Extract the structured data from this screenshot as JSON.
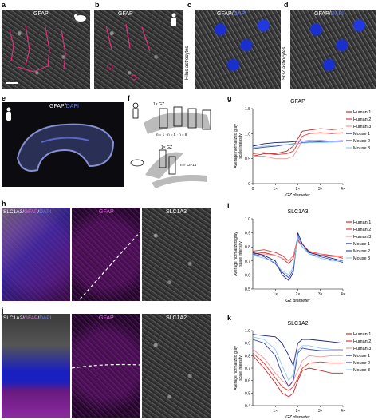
{
  "panels": {
    "a": {
      "letter": "a",
      "label": "GFAP"
    },
    "b": {
      "letter": "b",
      "label": "GFAP"
    },
    "c": {
      "letter": "c",
      "label_gfap": "GFAP",
      "label_sep": "/",
      "label_dapi": "DAPI",
      "side_label": "Hilus astrocytes"
    },
    "d": {
      "letter": "d",
      "label_gfap": "GFAP",
      "label_sep": "/",
      "label_dapi": "DAPI",
      "side_label": "SGZ astrocytes"
    },
    "e": {
      "letter": "e",
      "label_gfap": "GFAP",
      "label_sep": "/",
      "label_dapi": "DAPI"
    },
    "f": {
      "letter": "f",
      "gz_top": "1× GZ",
      "n_human": "n = 1 · n = 5 · n = 6",
      "gz_bottom": "1× GZ",
      "n_mouse": "n = 12–14"
    },
    "g": {
      "letter": "g"
    },
    "h": {
      "letter": "h",
      "label_slc": "SLC1A3",
      "label_sep1": "/",
      "label_gfap": "GFAP",
      "label_sep2": "/",
      "label_dapi": "DAPI",
      "mid_label": "GFAP",
      "right_label": "SLC1A3"
    },
    "i": {
      "letter": "i"
    },
    "j": {
      "letter": "j",
      "label_slc": "SLC1A2",
      "label_sep1": "/",
      "label_gfap": "GFAP",
      "label_sep2": "/",
      "label_dapi": "DAPI",
      "mid_label": "GFAP",
      "right_label": "SLC1A2"
    },
    "k": {
      "letter": "k"
    }
  },
  "colors": {
    "human1": "#c62828",
    "human2": "#e53935",
    "human3": "#ef9a9a",
    "mouse1": "#1a237e",
    "mouse2": "#3949ab",
    "mouse3": "#90caf9",
    "gfap_magenta": "#c040c0",
    "dapi_blue": "#2233dd"
  },
  "chart_data": [
    {
      "type": "line",
      "title": "GFAP",
      "xlabel": "GZ diameter",
      "ylabel": "Average normalized gray scale intensity",
      "xticks": [
        "0",
        "1×",
        "2×",
        "3×",
        "4×"
      ],
      "yticks": [
        "0",
        "0.5",
        "1.0",
        "1.5"
      ],
      "xlim": [
        0,
        4
      ],
      "ylim": [
        0,
        1.5
      ],
      "legend_position": "right",
      "x": [
        0,
        0.5,
        1,
        1.5,
        1.8,
        2,
        2.2,
        2.5,
        3,
        3.5,
        4
      ],
      "series": [
        {
          "name": "Human 1",
          "values": [
            0.55,
            0.6,
            0.6,
            0.65,
            0.75,
            0.9,
            1.05,
            1.07,
            1.1,
            1.08,
            1.1
          ]
        },
        {
          "name": "Human 2",
          "values": [
            0.6,
            0.62,
            0.58,
            0.6,
            0.65,
            0.8,
            0.95,
            1.0,
            1.02,
            1.0,
            1.02
          ]
        },
        {
          "name": "Human 3",
          "values": [
            0.55,
            0.55,
            0.5,
            0.5,
            0.55,
            0.7,
            0.85,
            0.87,
            0.86,
            0.85,
            0.85
          ]
        },
        {
          "name": "Mouse 1",
          "values": [
            0.75,
            0.8,
            0.82,
            0.83,
            0.84,
            0.85,
            0.85,
            0.85,
            0.86,
            0.85,
            0.85
          ]
        },
        {
          "name": "Mouse 2",
          "values": [
            0.7,
            0.73,
            0.75,
            0.78,
            0.8,
            0.8,
            0.82,
            0.83,
            0.84,
            0.85,
            0.86
          ]
        },
        {
          "name": "Mouse 3",
          "values": [
            0.72,
            0.75,
            0.77,
            0.78,
            0.79,
            0.8,
            0.81,
            0.82,
            0.82,
            0.83,
            0.84
          ]
        }
      ]
    },
    {
      "type": "line",
      "title": "SLC1A3",
      "xlabel": "GZ diameter",
      "ylabel": "Average normalized gray scale intensity",
      "xticks": [
        "1×",
        "2×",
        "3×",
        "4×"
      ],
      "yticks": [
        "0.5",
        "0.6",
        "0.7",
        "0.8",
        "0.9",
        "1.0"
      ],
      "xlim": [
        0,
        4
      ],
      "ylim": [
        0.5,
        1.0
      ],
      "legend_position": "right",
      "x": [
        0,
        0.5,
        1,
        1.3,
        1.6,
        1.8,
        2,
        2.2,
        2.5,
        3,
        3.5,
        4
      ],
      "series": [
        {
          "name": "Human 1",
          "values": [
            0.75,
            0.76,
            0.74,
            0.72,
            0.68,
            0.72,
            0.85,
            0.8,
            0.76,
            0.74,
            0.74,
            0.72
          ]
        },
        {
          "name": "Human 2",
          "values": [
            0.77,
            0.78,
            0.76,
            0.74,
            0.7,
            0.74,
            0.86,
            0.82,
            0.77,
            0.75,
            0.74,
            0.73
          ]
        },
        {
          "name": "Human 3",
          "values": [
            0.74,
            0.75,
            0.74,
            0.72,
            0.7,
            0.74,
            0.84,
            0.8,
            0.76,
            0.75,
            0.73,
            0.73
          ]
        },
        {
          "name": "Mouse 1",
          "values": [
            0.76,
            0.74,
            0.7,
            0.6,
            0.56,
            0.62,
            0.9,
            0.82,
            0.76,
            0.74,
            0.72,
            0.7
          ]
        },
        {
          "name": "Mouse 2",
          "values": [
            0.75,
            0.73,
            0.68,
            0.62,
            0.58,
            0.64,
            0.88,
            0.8,
            0.75,
            0.73,
            0.71,
            0.69
          ]
        },
        {
          "name": "Mouse 3",
          "values": [
            0.74,
            0.72,
            0.69,
            0.63,
            0.6,
            0.66,
            0.87,
            0.8,
            0.75,
            0.72,
            0.7,
            0.7
          ]
        }
      ]
    },
    {
      "type": "line",
      "title": "SLC1A2",
      "xlabel": "GZ diameter",
      "ylabel": "Average normalized gray scale intensity",
      "xticks": [
        "1×",
        "2×",
        "3×",
        "4×"
      ],
      "yticks": [
        "0.4",
        "0.5",
        "0.6",
        "0.7",
        "0.8",
        "0.9",
        "1.0"
      ],
      "xlim": [
        0,
        4
      ],
      "ylim": [
        0.4,
        1.0
      ],
      "legend_position": "right",
      "x": [
        0,
        0.5,
        1,
        1.3,
        1.6,
        1.8,
        2,
        2.2,
        2.5,
        3,
        3.5,
        4
      ],
      "series": [
        {
          "name": "Human 1",
          "values": [
            0.8,
            0.7,
            0.58,
            0.5,
            0.47,
            0.5,
            0.6,
            0.68,
            0.7,
            0.68,
            0.66,
            0.66
          ]
        },
        {
          "name": "Human 2",
          "values": [
            0.82,
            0.74,
            0.62,
            0.55,
            0.52,
            0.55,
            0.62,
            0.7,
            0.74,
            0.75,
            0.74,
            0.74
          ]
        },
        {
          "name": "Human 3",
          "values": [
            0.85,
            0.78,
            0.66,
            0.6,
            0.56,
            0.6,
            0.68,
            0.76,
            0.8,
            0.79,
            0.8,
            0.8
          ]
        },
        {
          "name": "Mouse 1",
          "values": [
            0.97,
            0.96,
            0.95,
            0.9,
            0.8,
            0.72,
            0.9,
            0.93,
            0.93,
            0.92,
            0.91,
            0.9
          ]
        },
        {
          "name": "Mouse 2",
          "values": [
            0.93,
            0.9,
            0.8,
            0.65,
            0.55,
            0.6,
            0.82,
            0.86,
            0.85,
            0.84,
            0.84,
            0.84
          ]
        },
        {
          "name": "Mouse 3",
          "values": [
            0.95,
            0.93,
            0.85,
            0.72,
            0.6,
            0.65,
            0.84,
            0.88,
            0.88,
            0.86,
            0.85,
            0.85
          ]
        }
      ]
    }
  ]
}
